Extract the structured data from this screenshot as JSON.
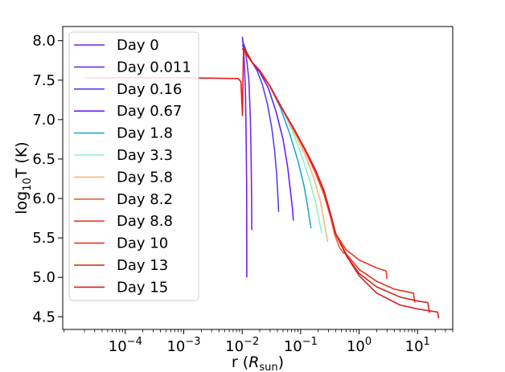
{
  "chart_data": {
    "type": "line",
    "title": "",
    "xlabel": {
      "base": "r (",
      "sym": "R",
      "sub": "sun",
      "close": ")"
    },
    "ylabel": {
      "pre": "log",
      "sub": "10",
      "post": "T (K)"
    },
    "xscale": "log",
    "xlim": [
      8.5e-06,
      40
    ],
    "ylim": [
      4.34,
      8.18
    ],
    "x_ticks": [
      {
        "value": 0.0001,
        "base": "10",
        "exp": "−4"
      },
      {
        "value": 0.001,
        "base": "10",
        "exp": "−3"
      },
      {
        "value": 0.01,
        "base": "10",
        "exp": "−2"
      },
      {
        "value": 0.1,
        "base": "10",
        "exp": "−1"
      },
      {
        "value": 1,
        "base": "10",
        "exp": "0"
      },
      {
        "value": 10,
        "base": "10",
        "exp": "1"
      }
    ],
    "y_ticks": [
      {
        "value": 4.5,
        "label": "4.5"
      },
      {
        "value": 5.0,
        "label": "5.0"
      },
      {
        "value": 5.5,
        "label": "5.5"
      },
      {
        "value": 6.0,
        "label": "6.0"
      },
      {
        "value": 6.5,
        "label": "6.5"
      },
      {
        "value": 7.0,
        "label": "7.0"
      },
      {
        "value": 7.5,
        "label": "7.5"
      },
      {
        "value": 8.0,
        "label": "8.0"
      }
    ],
    "legend_position": "upper-left",
    "series": [
      {
        "name": "Day 0",
        "color": "#7b1fe0",
        "x": [
          0.0101,
          0.0103,
          0.0106,
          0.011,
          0.0114,
          0.0117,
          0.0119,
          0.012,
          0.012
        ],
        "y": [
          8.05,
          7.98,
          7.85,
          7.65,
          7.3,
          6.8,
          6.2,
          5.4,
          5.0
        ]
      },
      {
        "name": "Day 0.011",
        "color": "#6a2fe8",
        "x": [
          0.0101,
          0.011,
          0.012,
          0.013,
          0.0138,
          0.0142,
          0.0145,
          0.0146
        ],
        "y": [
          8.0,
          7.9,
          7.75,
          7.5,
          7.0,
          6.5,
          6.0,
          5.6
        ]
      },
      {
        "name": "Day 0.16",
        "color": "#5a3ff0",
        "x": [
          0.0101,
          0.012,
          0.015,
          0.018,
          0.022,
          0.027,
          0.032,
          0.036,
          0.039,
          0.041,
          0.042
        ],
        "y": [
          8.0,
          7.85,
          7.72,
          7.62,
          7.45,
          7.2,
          6.9,
          6.6,
          6.3,
          6.0,
          5.83
        ]
      },
      {
        "name": "Day 0.67",
        "color": "#6a1fff",
        "x": [
          0.0101,
          0.012,
          0.015,
          0.02,
          0.028,
          0.038,
          0.05,
          0.06,
          0.068,
          0.073,
          0.075
        ],
        "y": [
          7.95,
          7.82,
          7.72,
          7.6,
          7.4,
          7.1,
          6.75,
          6.4,
          6.05,
          5.85,
          5.72
        ]
      },
      {
        "name": "Day 1.8",
        "color": "#1fa8d8",
        "x": [
          0.0101,
          0.015,
          0.02,
          0.03,
          0.045,
          0.065,
          0.09,
          0.115,
          0.135,
          0.15
        ],
        "y": [
          7.9,
          7.72,
          7.62,
          7.42,
          7.15,
          6.82,
          6.48,
          6.15,
          5.85,
          5.62
        ]
      },
      {
        "name": "Day 3.3",
        "color": "#8cf0c8",
        "x": [
          0.0101,
          0.015,
          0.02,
          0.03,
          0.045,
          0.07,
          0.1,
          0.14,
          0.18,
          0.21,
          0.23
        ],
        "y": [
          7.9,
          7.72,
          7.62,
          7.42,
          7.18,
          6.88,
          6.58,
          6.25,
          5.95,
          5.7,
          5.56
        ]
      },
      {
        "name": "Day 5.8",
        "color": "#f0b880",
        "x": [
          0.0101,
          0.015,
          0.02,
          0.03,
          0.05,
          0.08,
          0.12,
          0.17,
          0.22,
          0.26,
          0.29
        ],
        "y": [
          7.9,
          7.72,
          7.62,
          7.42,
          7.12,
          6.82,
          6.55,
          6.25,
          5.95,
          5.65,
          5.45
        ]
      },
      {
        "name": "Day 8.2",
        "color": "#e0603c",
        "x": [
          0.0101,
          0.015,
          0.02,
          0.03,
          0.05,
          0.08,
          0.12,
          0.18,
          0.25,
          0.32,
          0.38,
          0.46,
          0.55
        ],
        "y": [
          7.9,
          7.72,
          7.62,
          7.42,
          7.12,
          6.85,
          6.6,
          6.32,
          6.05,
          5.78,
          5.55,
          5.38,
          5.3
        ]
      },
      {
        "name": "Day 8.8",
        "color": "#f03a24",
        "x": [
          0.0101,
          0.015,
          0.02,
          0.03,
          0.05,
          0.08,
          0.12,
          0.18,
          0.25,
          0.32,
          0.4,
          0.6,
          1.0,
          2.0,
          2.9,
          3.0
        ],
        "y": [
          7.9,
          7.72,
          7.62,
          7.42,
          7.12,
          6.85,
          6.62,
          6.35,
          6.08,
          5.8,
          5.55,
          5.35,
          5.22,
          5.12,
          5.08,
          4.98
        ]
      },
      {
        "name": "Day 10",
        "color": "#e8341c",
        "x": [
          0.0101,
          0.015,
          0.02,
          0.03,
          0.05,
          0.08,
          0.12,
          0.18,
          0.25,
          0.32,
          0.4,
          0.6,
          1.0,
          2.0,
          4.0,
          8.5,
          9.0
        ],
        "y": [
          7.9,
          7.72,
          7.62,
          7.42,
          7.12,
          6.86,
          6.62,
          6.36,
          6.1,
          5.82,
          5.55,
          5.3,
          5.1,
          4.95,
          4.85,
          4.8,
          4.68
        ]
      },
      {
        "name": "Day 13",
        "color": "#c8281c",
        "x": [
          0.0101,
          0.015,
          0.02,
          0.03,
          0.05,
          0.08,
          0.12,
          0.18,
          0.25,
          0.32,
          0.4,
          0.6,
          1.0,
          2.0,
          5.0,
          10.0,
          15.0,
          16.0
        ],
        "y": [
          7.9,
          7.72,
          7.62,
          7.42,
          7.12,
          6.86,
          6.62,
          6.36,
          6.1,
          5.82,
          5.55,
          5.28,
          5.05,
          4.88,
          4.75,
          4.7,
          4.68,
          4.55
        ]
      },
      {
        "name": "Day 15",
        "color": "#e41a1c",
        "x": [
          2e-05,
          0.001,
          0.0085,
          0.0095,
          0.0099,
          0.0101,
          0.0105,
          0.011,
          0.015,
          0.02,
          0.03,
          0.05,
          0.08,
          0.12,
          0.18,
          0.25,
          0.32,
          0.4,
          0.6,
          1.0,
          2.0,
          5.0,
          10.0,
          18.0,
          22.0,
          23.0
        ],
        "y": [
          7.53,
          7.53,
          7.52,
          7.48,
          7.2,
          7.05,
          7.85,
          7.9,
          7.72,
          7.62,
          7.42,
          7.12,
          6.86,
          6.62,
          6.36,
          6.1,
          5.82,
          5.55,
          5.28,
          5.02,
          4.8,
          4.65,
          4.6,
          4.57,
          4.56,
          4.48
        ]
      }
    ]
  }
}
